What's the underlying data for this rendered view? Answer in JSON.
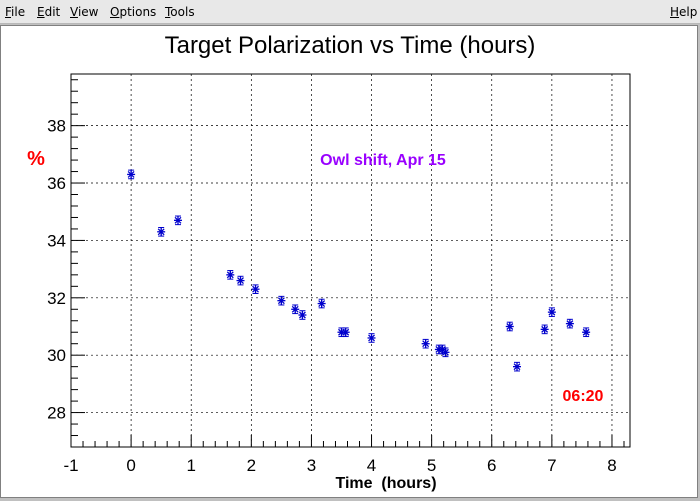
{
  "menu": {
    "items": [
      {
        "label": "File",
        "accel": "F",
        "rest": "ile"
      },
      {
        "label": "Edit",
        "accel": "E",
        "rest": "dit"
      },
      {
        "label": "View",
        "accel": "V",
        "rest": "iew"
      },
      {
        "label": "Options",
        "accel": "O",
        "rest": "ptions"
      },
      {
        "label": "Tools",
        "accel": "T",
        "rest": "ools"
      }
    ],
    "help": {
      "label": "Help",
      "accel": "H",
      "rest": "elp"
    }
  },
  "chart_data": {
    "type": "scatter",
    "title": "Target Polarization vs Time (hours)",
    "xlabel": "Time  (hours)",
    "ylabel": "%",
    "xlim": [
      -1,
      8.3
    ],
    "ylim": [
      26.8,
      39.8
    ],
    "xticks": [
      -1,
      0,
      1,
      2,
      3,
      4,
      5,
      6,
      7,
      8
    ],
    "yticks": [
      28,
      30,
      32,
      34,
      36,
      38
    ],
    "grid": true,
    "marker_color": "#0000cc",
    "annotations": [
      {
        "text": "Owl shift, Apr 15",
        "color": "#9900ff"
      },
      {
        "text": "06:20",
        "color": "#ff0000"
      }
    ],
    "series": [
      {
        "x": [
          0.0,
          0.5,
          0.78,
          1.65,
          1.82,
          2.07,
          2.5,
          2.73,
          2.85,
          3.17,
          3.5,
          3.57,
          4.0,
          4.9,
          5.12,
          5.18,
          5.23,
          6.3,
          6.42,
          6.88,
          7.0,
          7.3,
          7.57
        ],
        "y": [
          36.3,
          34.3,
          34.7,
          32.8,
          32.6,
          32.3,
          31.9,
          31.6,
          31.4,
          31.8,
          30.8,
          30.8,
          30.6,
          30.4,
          30.2,
          30.2,
          30.1,
          31.0,
          29.6,
          30.9,
          31.5,
          31.1,
          30.8
        ],
        "yerr": 0.15
      }
    ]
  }
}
